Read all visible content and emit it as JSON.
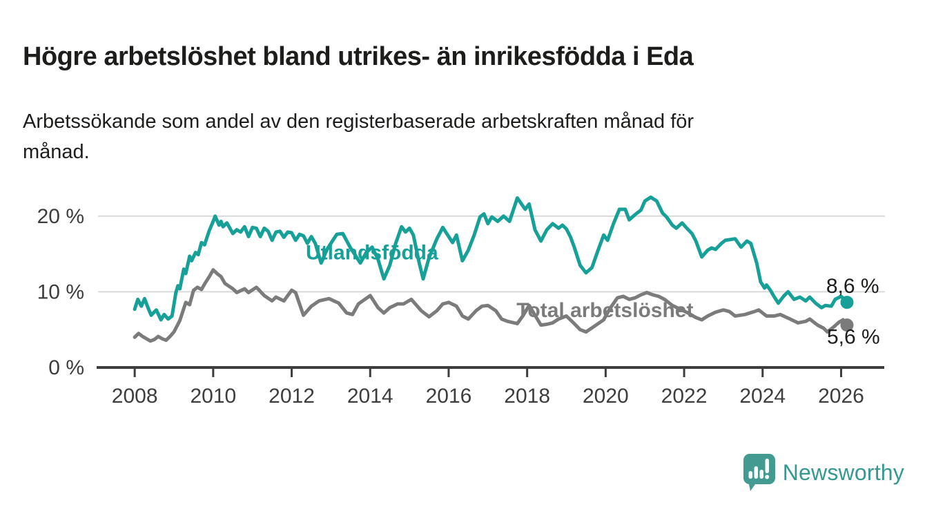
{
  "header": {
    "title": "Högre arbetslöshet bland utrikes- än inrikesfödda i Eda",
    "subtitle": "Arbetssökande som andel av den registerbaserade arbetskraften månad för\nmånad."
  },
  "footer": {
    "brand": "Newsworthy",
    "logo_icon": "bar-chart-speech-bubble",
    "brand_color": "#35998f",
    "logo_color": "#429a91"
  },
  "chart_data": {
    "type": "line",
    "title": "Högre arbetslöshet bland utrikes- än inrikesfödda i Eda",
    "subtitle": "Arbetssökande som andel av den registerbaserade arbetskraften månad för månad.",
    "x_unit": "year",
    "xlim": [
      2007.03,
      2027.1
    ],
    "ylim": [
      0,
      23
    ],
    "grid": "horizontal",
    "legend_position": "inline-labels",
    "xticks": [
      2008,
      2010,
      2012,
      2014,
      2016,
      2018,
      2020,
      2022,
      2024,
      2026
    ],
    "yticks": [
      {
        "value": 0,
        "label": "0 %"
      },
      {
        "value": 10,
        "label": "10 %"
      },
      {
        "value": 20,
        "label": "20 %"
      }
    ],
    "text_color": "#1d1d1b",
    "axis_color": "#3d3d3d",
    "series": [
      {
        "name": "Total arbetslöshet",
        "color": "#7b7b7b",
        "end_value": 5.6,
        "end_label": "5,6 %",
        "end_label_anchor": [
          2025.64,
          3.15
        ],
        "name_anchor": [
          2017.73,
          6.65
        ],
        "points": [
          [
            2008.0,
            4.0
          ],
          [
            2008.1,
            4.5
          ],
          [
            2008.2,
            4.1
          ],
          [
            2008.3,
            3.8
          ],
          [
            2008.4,
            3.5
          ],
          [
            2008.5,
            3.7
          ],
          [
            2008.6,
            4.1
          ],
          [
            2008.7,
            3.8
          ],
          [
            2008.8,
            3.6
          ],
          [
            2008.9,
            4.1
          ],
          [
            2009.0,
            4.7
          ],
          [
            2009.15,
            6.2
          ],
          [
            2009.3,
            8.6
          ],
          [
            2009.4,
            8.3
          ],
          [
            2009.5,
            10.2
          ],
          [
            2009.6,
            10.6
          ],
          [
            2009.7,
            10.3
          ],
          [
            2009.8,
            11.2
          ],
          [
            2009.9,
            12.0
          ],
          [
            2010.0,
            12.9
          ],
          [
            2010.1,
            12.4
          ],
          [
            2010.2,
            12.0
          ],
          [
            2010.3,
            11.1
          ],
          [
            2010.5,
            10.4
          ],
          [
            2010.6,
            9.9
          ],
          [
            2010.8,
            10.4
          ],
          [
            2010.9,
            9.9
          ],
          [
            2011.1,
            10.6
          ],
          [
            2011.3,
            9.5
          ],
          [
            2011.5,
            8.8
          ],
          [
            2011.6,
            9.3
          ],
          [
            2011.8,
            8.8
          ],
          [
            2012.0,
            10.2
          ],
          [
            2012.1,
            9.9
          ],
          [
            2012.3,
            6.9
          ],
          [
            2012.5,
            8.1
          ],
          [
            2012.7,
            8.8
          ],
          [
            2012.95,
            9.1
          ],
          [
            2013.2,
            8.5
          ],
          [
            2013.4,
            7.2
          ],
          [
            2013.55,
            7.0
          ],
          [
            2013.7,
            8.4
          ],
          [
            2014.0,
            9.5
          ],
          [
            2014.2,
            7.9
          ],
          [
            2014.35,
            7.2
          ],
          [
            2014.5,
            7.9
          ],
          [
            2014.7,
            8.4
          ],
          [
            2014.85,
            8.4
          ],
          [
            2015.05,
            9.0
          ],
          [
            2015.3,
            7.5
          ],
          [
            2015.5,
            6.7
          ],
          [
            2015.7,
            7.5
          ],
          [
            2015.85,
            8.4
          ],
          [
            2016.0,
            8.6
          ],
          [
            2016.2,
            8.1
          ],
          [
            2016.35,
            6.8
          ],
          [
            2016.5,
            6.4
          ],
          [
            2016.7,
            7.5
          ],
          [
            2016.85,
            8.1
          ],
          [
            2017.0,
            8.2
          ],
          [
            2017.2,
            7.5
          ],
          [
            2017.35,
            6.4
          ],
          [
            2017.5,
            6.1
          ],
          [
            2017.75,
            5.8
          ],
          [
            2017.9,
            6.9
          ],
          [
            2018.05,
            8.2
          ],
          [
            2018.2,
            6.9
          ],
          [
            2018.35,
            5.6
          ],
          [
            2018.5,
            5.7
          ],
          [
            2018.65,
            5.9
          ],
          [
            2018.8,
            6.4
          ],
          [
            2019.0,
            6.8
          ],
          [
            2019.2,
            5.8
          ],
          [
            2019.35,
            5.0
          ],
          [
            2019.5,
            4.7
          ],
          [
            2019.7,
            5.4
          ],
          [
            2019.95,
            6.3
          ],
          [
            2020.1,
            7.7
          ],
          [
            2020.3,
            9.2
          ],
          [
            2020.45,
            9.4
          ],
          [
            2020.6,
            9.0
          ],
          [
            2020.75,
            9.2
          ],
          [
            2020.9,
            9.6
          ],
          [
            2021.05,
            9.9
          ],
          [
            2021.2,
            9.6
          ],
          [
            2021.35,
            9.4
          ],
          [
            2021.5,
            9.0
          ],
          [
            2021.7,
            8.2
          ],
          [
            2021.9,
            7.7
          ],
          [
            2022.1,
            7.2
          ],
          [
            2022.3,
            6.6
          ],
          [
            2022.45,
            6.3
          ],
          [
            2022.6,
            6.8
          ],
          [
            2022.8,
            7.3
          ],
          [
            2023.0,
            7.6
          ],
          [
            2023.15,
            7.4
          ],
          [
            2023.3,
            6.8
          ],
          [
            2023.55,
            7.0
          ],
          [
            2023.8,
            7.4
          ],
          [
            2023.9,
            7.6
          ],
          [
            2024.1,
            6.8
          ],
          [
            2024.3,
            6.8
          ],
          [
            2024.45,
            7.0
          ],
          [
            2024.7,
            6.4
          ],
          [
            2024.9,
            5.9
          ],
          [
            2025.1,
            6.1
          ],
          [
            2025.2,
            6.4
          ],
          [
            2025.4,
            5.6
          ],
          [
            2025.55,
            5.2
          ],
          [
            2025.65,
            4.7
          ],
          [
            2025.8,
            5.3
          ],
          [
            2025.95,
            6.0
          ],
          [
            2026.05,
            6.3
          ],
          [
            2026.15,
            5.6
          ]
        ]
      },
      {
        "name": "Utlandsfödda",
        "color": "#16a098",
        "end_value": 8.6,
        "end_label": "8,6 %",
        "end_label_anchor": [
          2025.62,
          9.85
        ],
        "name_anchor": [
          2012.36,
          14.3
        ],
        "points": [
          [
            2008.0,
            7.7
          ],
          [
            2008.08,
            9.0
          ],
          [
            2008.17,
            8.1
          ],
          [
            2008.25,
            9.1
          ],
          [
            2008.33,
            8.0
          ],
          [
            2008.42,
            6.9
          ],
          [
            2008.55,
            7.6
          ],
          [
            2008.67,
            6.3
          ],
          [
            2008.75,
            7.0
          ],
          [
            2008.85,
            6.4
          ],
          [
            2008.95,
            6.8
          ],
          [
            2009.05,
            9.9
          ],
          [
            2009.1,
            10.8
          ],
          [
            2009.15,
            10.4
          ],
          [
            2009.25,
            13.0
          ],
          [
            2009.3,
            12.4
          ],
          [
            2009.4,
            14.7
          ],
          [
            2009.45,
            14.1
          ],
          [
            2009.55,
            15.2
          ],
          [
            2009.62,
            14.9
          ],
          [
            2009.7,
            16.5
          ],
          [
            2009.78,
            16.2
          ],
          [
            2009.9,
            18.1
          ],
          [
            2010.0,
            19.3
          ],
          [
            2010.05,
            20.0
          ],
          [
            2010.15,
            18.8
          ],
          [
            2010.2,
            19.3
          ],
          [
            2010.25,
            18.6
          ],
          [
            2010.35,
            19.1
          ],
          [
            2010.5,
            17.7
          ],
          [
            2010.6,
            18.2
          ],
          [
            2010.7,
            17.9
          ],
          [
            2010.8,
            18.6
          ],
          [
            2010.9,
            17.3
          ],
          [
            2011.0,
            18.5
          ],
          [
            2011.1,
            18.4
          ],
          [
            2011.2,
            17.3
          ],
          [
            2011.3,
            18.4
          ],
          [
            2011.4,
            18.0
          ],
          [
            2011.5,
            16.8
          ],
          [
            2011.6,
            17.9
          ],
          [
            2011.7,
            18.0
          ],
          [
            2011.8,
            17.2
          ],
          [
            2011.9,
            17.9
          ],
          [
            2012.0,
            17.8
          ],
          [
            2012.1,
            16.8
          ],
          [
            2012.2,
            17.6
          ],
          [
            2012.3,
            17.4
          ],
          [
            2012.4,
            16.4
          ],
          [
            2012.5,
            17.3
          ],
          [
            2012.6,
            16.4
          ],
          [
            2012.75,
            13.8
          ],
          [
            2012.9,
            15.6
          ],
          [
            2013.05,
            16.8
          ],
          [
            2013.15,
            17.6
          ],
          [
            2013.3,
            17.7
          ],
          [
            2013.5,
            15.8
          ],
          [
            2013.75,
            13.8
          ],
          [
            2013.9,
            15.2
          ],
          [
            2014.05,
            15.9
          ],
          [
            2014.2,
            14.3
          ],
          [
            2014.35,
            11.7
          ],
          [
            2014.5,
            13.5
          ],
          [
            2014.65,
            16.4
          ],
          [
            2014.8,
            18.6
          ],
          [
            2014.9,
            17.9
          ],
          [
            2015.0,
            18.4
          ],
          [
            2015.1,
            17.5
          ],
          [
            2015.25,
            13.8
          ],
          [
            2015.35,
            11.7
          ],
          [
            2015.5,
            14.5
          ],
          [
            2015.7,
            17.0
          ],
          [
            2015.85,
            18.5
          ],
          [
            2016.0,
            17.3
          ],
          [
            2016.1,
            16.5
          ],
          [
            2016.2,
            17.5
          ],
          [
            2016.35,
            14.1
          ],
          [
            2016.5,
            15.5
          ],
          [
            2016.65,
            17.5
          ],
          [
            2016.8,
            19.9
          ],
          [
            2016.9,
            20.3
          ],
          [
            2017.0,
            19.0
          ],
          [
            2017.1,
            19.9
          ],
          [
            2017.25,
            19.3
          ],
          [
            2017.4,
            20.0
          ],
          [
            2017.55,
            19.3
          ],
          [
            2017.75,
            22.4
          ],
          [
            2017.95,
            20.9
          ],
          [
            2018.05,
            21.6
          ],
          [
            2018.2,
            18.2
          ],
          [
            2018.35,
            16.7
          ],
          [
            2018.5,
            18.2
          ],
          [
            2018.65,
            19.0
          ],
          [
            2018.8,
            18.4
          ],
          [
            2018.9,
            18.8
          ],
          [
            2019.0,
            18.3
          ],
          [
            2019.1,
            17.3
          ],
          [
            2019.2,
            15.9
          ],
          [
            2019.35,
            13.5
          ],
          [
            2019.5,
            12.5
          ],
          [
            2019.65,
            13.2
          ],
          [
            2019.8,
            15.4
          ],
          [
            2019.95,
            17.5
          ],
          [
            2020.05,
            16.8
          ],
          [
            2020.2,
            19.0
          ],
          [
            2020.35,
            20.9
          ],
          [
            2020.5,
            20.9
          ],
          [
            2020.6,
            19.5
          ],
          [
            2020.75,
            20.2
          ],
          [
            2020.9,
            20.8
          ],
          [
            2021.0,
            22.0
          ],
          [
            2021.15,
            22.5
          ],
          [
            2021.3,
            22.0
          ],
          [
            2021.45,
            20.4
          ],
          [
            2021.55,
            19.9
          ],
          [
            2021.7,
            18.8
          ],
          [
            2021.8,
            18.4
          ],
          [
            2021.95,
            19.1
          ],
          [
            2022.05,
            18.5
          ],
          [
            2022.2,
            17.7
          ],
          [
            2022.3,
            16.7
          ],
          [
            2022.45,
            14.6
          ],
          [
            2022.6,
            15.5
          ],
          [
            2022.7,
            15.8
          ],
          [
            2022.8,
            15.6
          ],
          [
            2022.95,
            16.4
          ],
          [
            2023.05,
            16.8
          ],
          [
            2023.3,
            17.0
          ],
          [
            2023.45,
            15.9
          ],
          [
            2023.6,
            16.7
          ],
          [
            2023.7,
            16.4
          ],
          [
            2023.85,
            13.8
          ],
          [
            2023.95,
            11.3
          ],
          [
            2024.05,
            10.5
          ],
          [
            2024.1,
            10.9
          ],
          [
            2024.2,
            10.2
          ],
          [
            2024.3,
            9.3
          ],
          [
            2024.4,
            8.5
          ],
          [
            2024.55,
            9.5
          ],
          [
            2024.65,
            10.0
          ],
          [
            2024.8,
            9.0
          ],
          [
            2024.95,
            9.3
          ],
          [
            2025.1,
            8.8
          ],
          [
            2025.2,
            9.3
          ],
          [
            2025.35,
            8.5
          ],
          [
            2025.5,
            7.9
          ],
          [
            2025.6,
            8.2
          ],
          [
            2025.75,
            8.1
          ],
          [
            2025.85,
            9.0
          ],
          [
            2026.0,
            9.4
          ],
          [
            2026.15,
            8.6
          ]
        ]
      }
    ]
  }
}
